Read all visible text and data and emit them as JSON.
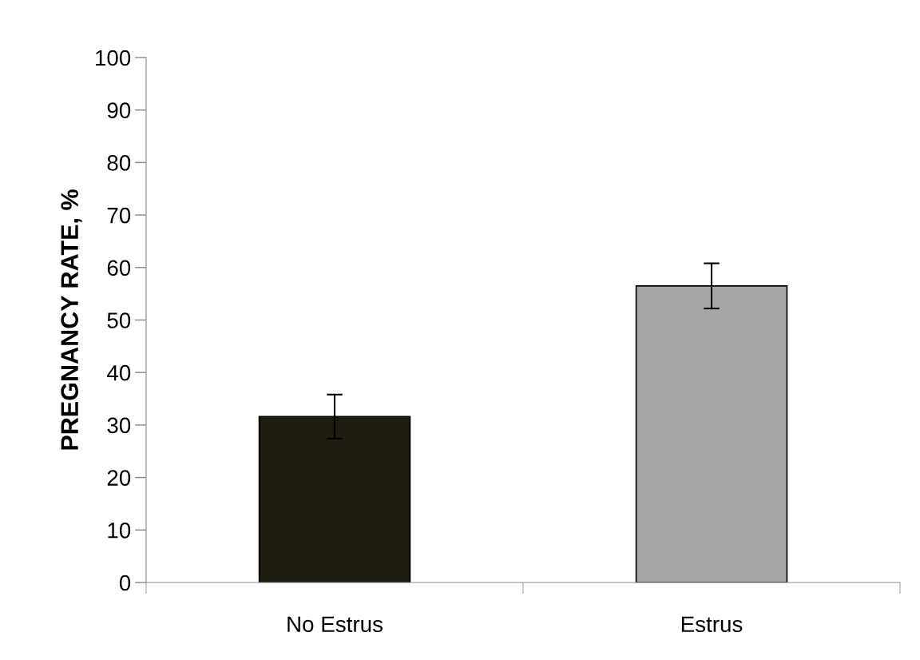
{
  "chart_data": {
    "type": "bar",
    "ylabel": "PREGNANCY RATE, %",
    "categories": [
      "No Estrus",
      "Estrus"
    ],
    "values": [
      31.6,
      56.5
    ],
    "colors": [
      "#1f1c12",
      "#a6a6a6"
    ],
    "errors": [
      4.2,
      4.3
    ],
    "ylim": [
      0,
      100
    ],
    "yticks": [
      0,
      10,
      20,
      30,
      40,
      50,
      60,
      70,
      80,
      90,
      100
    ],
    "grid": false,
    "legend": false
  }
}
